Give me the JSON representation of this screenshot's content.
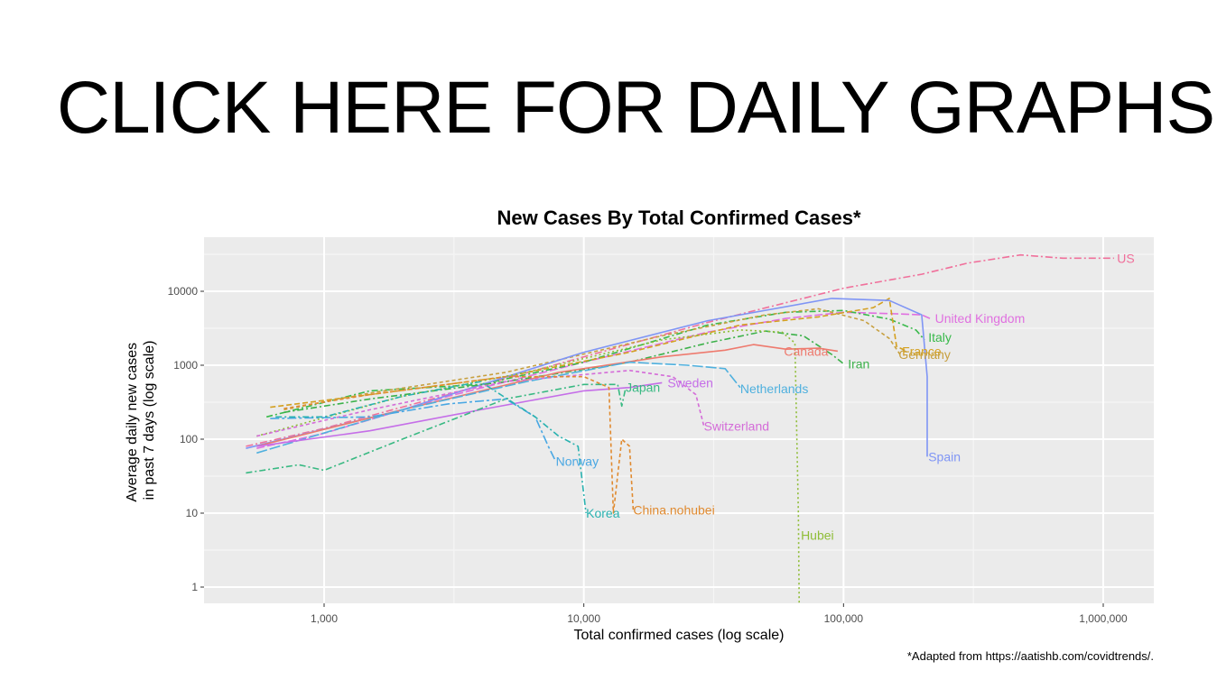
{
  "slide": {
    "heading": "CLICK HERE FOR DAILY GRAPHS",
    "footnote": "*Adapted from https://aatishb.com/covidtrends/."
  },
  "colors": {
    "panel_background": "#ebebeb",
    "grid_major": "#ffffff",
    "grid_minor": "#f5f5f5"
  },
  "chart_data": {
    "type": "line",
    "title": "New Cases By Total Confirmed Cases*",
    "xlabel": "Total confirmed cases (log scale)",
    "ylabel_lines": [
      "Average daily new cases",
      "in past 7 days (log scale)"
    ],
    "x_scale": "log",
    "y_scale": "log",
    "xlim": [
      300,
      1500000
    ],
    "ylim": [
      0.6,
      40000
    ],
    "grid": true,
    "legend": "none",
    "x_ticks": [
      {
        "value": 1000,
        "label": "1,000"
      },
      {
        "value": 10000,
        "label": "10,000"
      },
      {
        "value": 100000,
        "label": "100,000"
      },
      {
        "value": 1000000,
        "label": "1,000,000"
      }
    ],
    "y_ticks": [
      {
        "value": 1,
        "label": "1"
      },
      {
        "value": 10,
        "label": "10"
      },
      {
        "value": 100,
        "label": "100"
      },
      {
        "value": 1000,
        "label": "1000"
      },
      {
        "value": 10000,
        "label": "10000"
      }
    ],
    "series": [
      {
        "name": "US",
        "color": "#f0709b",
        "dash": "8,3,2,3",
        "label_at": [
          1130000,
          28000
        ],
        "points": [
          [
            500,
            80
          ],
          [
            1000,
            140
          ],
          [
            3000,
            400
          ],
          [
            10000,
            1300
          ],
          [
            30000,
            3800
          ],
          [
            100000,
            11000
          ],
          [
            200000,
            17000
          ],
          [
            300000,
            24000
          ],
          [
            480000,
            31000
          ],
          [
            700000,
            28000
          ],
          [
            1000000,
            28000
          ],
          [
            1100000,
            28000
          ]
        ]
      },
      {
        "name": "United Kingdom",
        "color": "#e070e0",
        "dash": "9,3",
        "label_at": [
          225000,
          4300
        ],
        "points": [
          [
            550,
            75
          ],
          [
            1000,
            120
          ],
          [
            3000,
            380
          ],
          [
            10000,
            1100
          ],
          [
            30000,
            2800
          ],
          [
            60000,
            4300
          ],
          [
            100000,
            5200
          ],
          [
            150000,
            5000
          ],
          [
            200000,
            4800
          ],
          [
            215000,
            4300
          ]
        ]
      },
      {
        "name": "Italy",
        "color": "#38b94a",
        "dash": "7,3,2,3",
        "label_at": [
          212000,
          2400
        ],
        "points": [
          [
            600,
            200
          ],
          [
            1500,
            450
          ],
          [
            4000,
            550
          ],
          [
            10000,
            1100
          ],
          [
            30000,
            3500
          ],
          [
            60000,
            5200
          ],
          [
            100000,
            5500
          ],
          [
            150000,
            4200
          ],
          [
            190000,
            3000
          ],
          [
            205000,
            2200
          ]
        ]
      },
      {
        "name": "France",
        "color": "#d4a020",
        "dash": "6,3",
        "label_at": [
          168000,
          1550
        ],
        "points": [
          [
            620,
            270
          ],
          [
            1500,
            400
          ],
          [
            5000,
            700
          ],
          [
            15000,
            1500
          ],
          [
            40000,
            3500
          ],
          [
            80000,
            4500
          ],
          [
            130000,
            6000
          ],
          [
            150000,
            8000
          ],
          [
            160000,
            1800
          ],
          [
            175000,
            1550
          ]
        ]
      },
      {
        "name": "Germany",
        "color": "#c7a040",
        "dash": "4,3",
        "label_at": [
          163000,
          1400
        ],
        "points": [
          [
            700,
            250
          ],
          [
            1500,
            420
          ],
          [
            5000,
            800
          ],
          [
            20000,
            2500
          ],
          [
            50000,
            4800
          ],
          [
            80000,
            5800
          ],
          [
            120000,
            4000
          ],
          [
            150000,
            2300
          ],
          [
            165000,
            1400
          ]
        ]
      },
      {
        "name": "Spain",
        "color": "#7f95f5",
        "dash": "",
        "label_at": [
          212000,
          58
        ],
        "points": [
          [
            500,
            75
          ],
          [
            2000,
            250
          ],
          [
            10000,
            1500
          ],
          [
            30000,
            4000
          ],
          [
            90000,
            8000
          ],
          [
            150000,
            7500
          ],
          [
            200000,
            4800
          ],
          [
            210000,
            700
          ],
          [
            210000,
            58
          ]
        ]
      },
      {
        "name": "Iran",
        "color": "#3cb14a",
        "dash": "7,3,2,3",
        "label_at": [
          104000,
          1050
        ],
        "points": [
          [
            700,
            230
          ],
          [
            1500,
            350
          ],
          [
            5000,
            600
          ],
          [
            15000,
            1100
          ],
          [
            30000,
            2000
          ],
          [
            50000,
            2900
          ],
          [
            70000,
            2500
          ],
          [
            90000,
            1400
          ],
          [
            100000,
            1050
          ]
        ]
      },
      {
        "name": "Canada",
        "color": "#ee7a6e",
        "dash": "",
        "label_at": [
          59000,
          1550
        ],
        "points": [
          [
            550,
            80
          ],
          [
            2000,
            250
          ],
          [
            8000,
            800
          ],
          [
            20000,
            1300
          ],
          [
            35000,
            1600
          ],
          [
            45000,
            1900
          ],
          [
            60000,
            1650
          ],
          [
            80000,
            1700
          ],
          [
            95000,
            1550
          ]
        ]
      },
      {
        "name": "Hubei",
        "color": "#8fbd37",
        "dash": "2,3",
        "label_at": [
          68500,
          5
        ],
        "points": [
          [
            550,
            110
          ],
          [
            2000,
            380
          ],
          [
            6000,
            800
          ],
          [
            20000,
            2200
          ],
          [
            40000,
            3000
          ],
          [
            58000,
            2800
          ],
          [
            65000,
            2000
          ],
          [
            67000,
            10
          ],
          [
            67500,
            0.6
          ]
        ]
      },
      {
        "name": "Netherlands",
        "color": "#4fb0de",
        "dash": "12,3",
        "label_at": [
          40000,
          480
        ],
        "points": [
          [
            550,
            65
          ],
          [
            2000,
            250
          ],
          [
            6000,
            600
          ],
          [
            15000,
            1100
          ],
          [
            25000,
            1000
          ],
          [
            35000,
            900
          ],
          [
            40000,
            500
          ]
        ]
      },
      {
        "name": "Sweden",
        "color": "#c56ee8",
        "dash": "",
        "label_at": [
          21000,
          580
        ],
        "points": [
          [
            550,
            80
          ],
          [
            1500,
            130
          ],
          [
            4000,
            250
          ],
          [
            10000,
            450
          ],
          [
            15000,
            500
          ],
          [
            20000,
            580
          ]
        ]
      },
      {
        "name": "Japan",
        "color": "#38b982",
        "dash": "7,3,2,3",
        "label_at": [
          14500,
          500
        ],
        "points": [
          [
            500,
            35
          ],
          [
            800,
            45
          ],
          [
            1000,
            38
          ],
          [
            2000,
            100
          ],
          [
            5000,
            350
          ],
          [
            10000,
            550
          ],
          [
            13500,
            550
          ],
          [
            14000,
            280
          ],
          [
            14500,
            500
          ]
        ]
      },
      {
        "name": "Switzerland",
        "color": "#d46cd8",
        "dash": "4,3",
        "label_at": [
          29000,
          150
        ],
        "points": [
          [
            550,
            110
          ],
          [
            1500,
            250
          ],
          [
            5000,
            600
          ],
          [
            15000,
            850
          ],
          [
            22000,
            700
          ],
          [
            27000,
            400
          ],
          [
            29000,
            150
          ]
        ]
      },
      {
        "name": "Norway",
        "color": "#49a7e3",
        "dash": "10,3,3,3",
        "label_at": [
          7800,
          50
        ],
        "points": [
          [
            620,
            190
          ],
          [
            1500,
            200
          ],
          [
            3000,
            300
          ],
          [
            5000,
            350
          ],
          [
            6500,
            200
          ],
          [
            7300,
            80
          ],
          [
            7800,
            50
          ]
        ]
      },
      {
        "name": "Korea",
        "color": "#29b2b0",
        "dash": "7,3,2,3",
        "label_at": [
          10200,
          10
        ],
        "points": [
          [
            650,
            200
          ],
          [
            1000,
            200
          ],
          [
            2000,
            380
          ],
          [
            4000,
            600
          ],
          [
            6500,
            200
          ],
          [
            8000,
            110
          ],
          [
            9500,
            80
          ],
          [
            10200,
            10
          ]
        ]
      },
      {
        "name": "China.nohubei",
        "color": "#e08a30",
        "dash": "4,3",
        "label_at": [
          15500,
          11
        ],
        "points": [
          [
            700,
            260
          ],
          [
            1500,
            400
          ],
          [
            5000,
            700
          ],
          [
            10000,
            700
          ],
          [
            12500,
            500
          ],
          [
            13000,
            10
          ],
          [
            14000,
            100
          ],
          [
            15000,
            80
          ],
          [
            15500,
            11
          ]
        ]
      }
    ]
  }
}
